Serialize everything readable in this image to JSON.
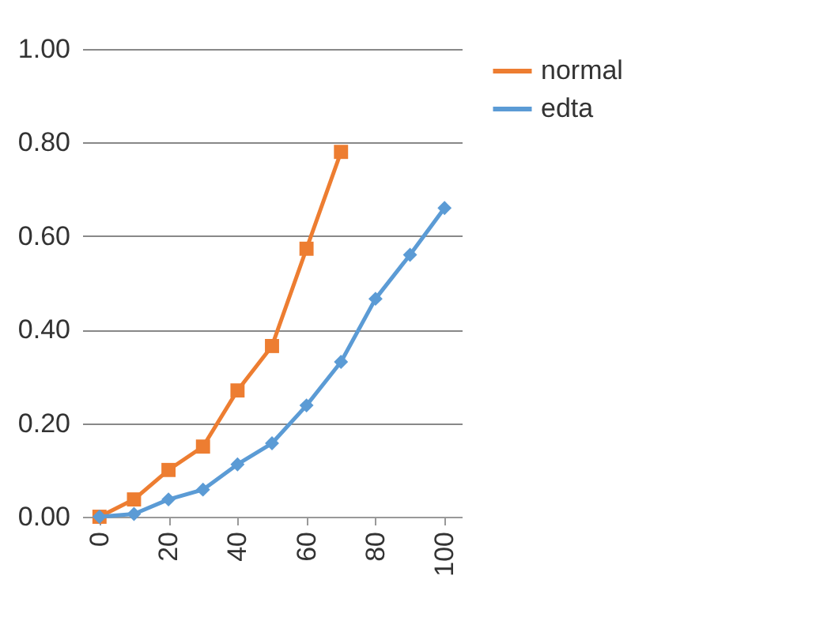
{
  "chart_data": {
    "type": "line",
    "x": [
      0,
      10,
      20,
      30,
      40,
      50,
      60,
      70,
      80,
      90,
      100
    ],
    "series": [
      {
        "name": "normal",
        "color": "#ed7d31",
        "marker": "square",
        "values": [
          0.0,
          0.037,
          0.1,
          0.15,
          0.27,
          0.365,
          0.573,
          0.78,
          null,
          null,
          null
        ]
      },
      {
        "name": "edta",
        "color": "#5b9bd5",
        "marker": "diamond",
        "values": [
          0.0,
          0.006,
          0.037,
          0.058,
          0.112,
          0.157,
          0.238,
          0.331,
          0.466,
          0.56,
          0.66
        ]
      }
    ],
    "xlim": [
      -5,
      105
    ],
    "xticks": [
      0,
      20,
      40,
      60,
      80,
      100
    ],
    "ylim": [
      0,
      1
    ],
    "yticks": [
      {
        "value": 0,
        "label": "0.00"
      },
      {
        "value": 0.2,
        "label": "0.20"
      },
      {
        "value": 0.4,
        "label": "0.40"
      },
      {
        "value": 0.6,
        "label": "0.60"
      },
      {
        "value": 0.8,
        "label": "0.80"
      },
      {
        "value": 1,
        "label": "1.00"
      }
    ],
    "grid": "y",
    "legend": "right"
  }
}
